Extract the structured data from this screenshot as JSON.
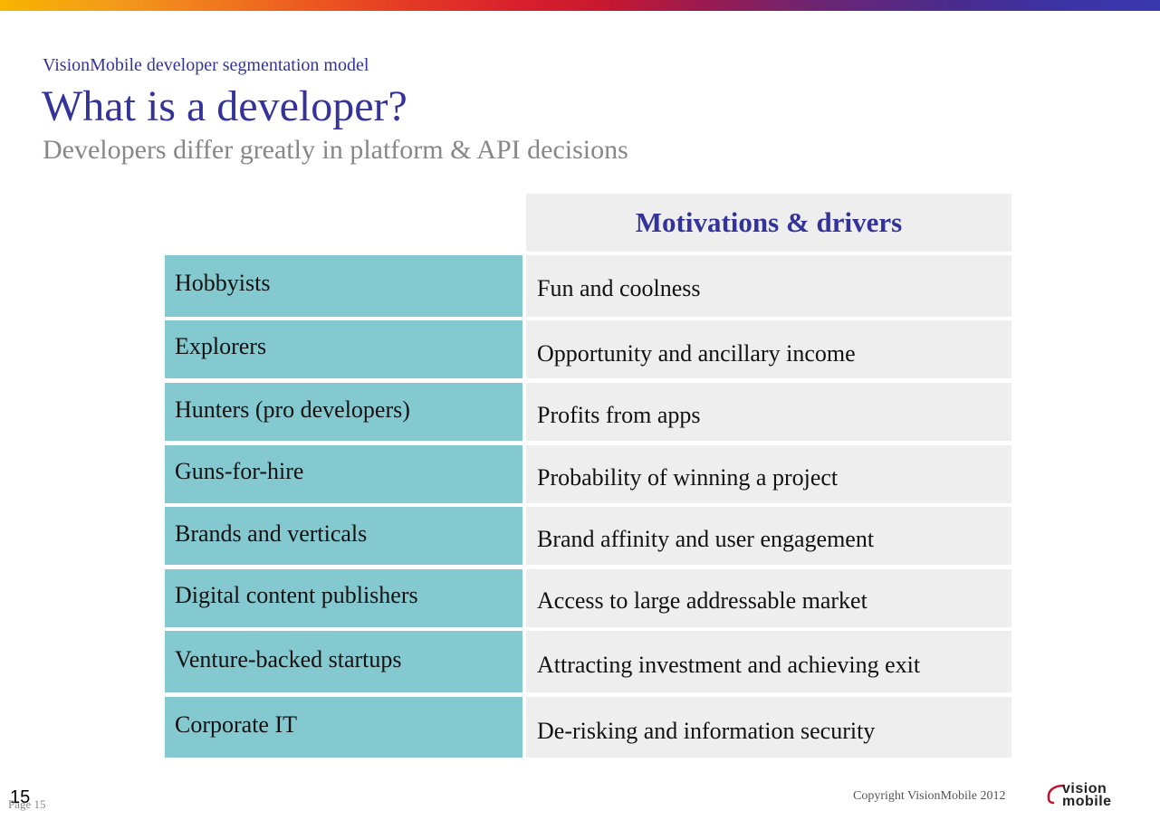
{
  "header": {
    "kicker": "VisionMobile developer segmentation model",
    "title": "What is a developer?",
    "subtitle": "Developers differ greatly in platform & API decisions"
  },
  "table": {
    "column_header": "Motivations & drivers",
    "rows": [
      {
        "segment": "Hobbyists",
        "driver": "Fun and coolness"
      },
      {
        "segment": "Explorers",
        "driver": "Opportunity and ancillary income"
      },
      {
        "segment": "Hunters (pro developers)",
        "driver": "Profits from apps"
      },
      {
        "segment": "Guns-for-hire",
        "driver": "Probability of winning a project"
      },
      {
        "segment": "Brands and verticals",
        "driver": "Brand affinity and user engagement"
      },
      {
        "segment": "Digital content publishers",
        "driver": "Access to large addressable market"
      },
      {
        "segment": "Venture-backed startups",
        "driver": "Attracting investment and achieving exit"
      },
      {
        "segment": "Corporate IT",
        "driver": "De-risking and information security"
      }
    ]
  },
  "footer": {
    "page_number": "15",
    "page_label": "Page 15",
    "copyright": "Copyright VisionMobile 2012",
    "logo_line1": "vision",
    "logo_line2": "mobile"
  },
  "colors": {
    "title": "#33339a",
    "subtitle": "#878787",
    "segment_bg": "#84c9d0",
    "driver_bg": "#eeeeee"
  }
}
